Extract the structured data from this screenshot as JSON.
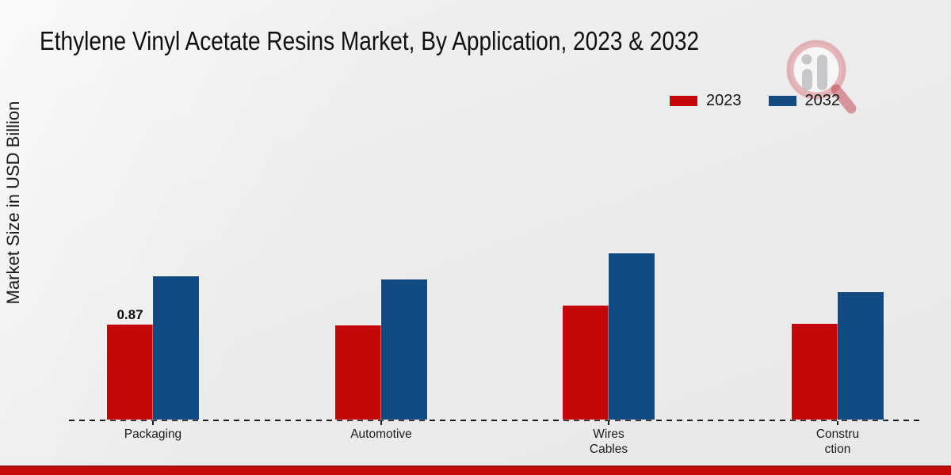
{
  "title": "Ethylene Vinyl Acetate Resins Market, By Application, 2023 & 2032",
  "y_axis_label": "Market Size in USD Billion",
  "legend": {
    "items": [
      {
        "label": "2023",
        "color": "#c40708"
      },
      {
        "label": "2032",
        "color": "#114b82"
      }
    ]
  },
  "colors": {
    "bar_2023": "#c40708",
    "bar_2032": "#114b82",
    "footer_band": "#c50a0a",
    "footer_band_edge": "#991111",
    "axis": "#1b1b1b",
    "background": "#ebebeb"
  },
  "chart_data": {
    "type": "bar",
    "title": "Ethylene Vinyl Acetate Resins Market, By Application, 2023 & 2032",
    "xlabel": "",
    "ylabel": "Market Size in USD Billion",
    "categories": [
      "Packaging",
      "Automotive",
      "Wires Cables",
      "Construction"
    ],
    "category_label_lines": [
      [
        "Packaging"
      ],
      [
        "Automotive"
      ],
      [
        "Wires",
        "Cables"
      ],
      [
        "Constru",
        "ction"
      ]
    ],
    "series": [
      {
        "name": "2023",
        "color": "#c40708",
        "values": [
          0.87,
          0.86,
          1.04,
          0.88
        ]
      },
      {
        "name": "2032",
        "color": "#114b82",
        "values": [
          1.31,
          1.28,
          1.52,
          1.17
        ]
      }
    ],
    "data_labels": [
      {
        "series": "2023",
        "category": "Packaging",
        "text": "0.87"
      }
    ],
    "ylim": [
      0,
      1.75
    ],
    "grid": false,
    "baseline_style": "dashed",
    "legend_position": "top-right"
  }
}
